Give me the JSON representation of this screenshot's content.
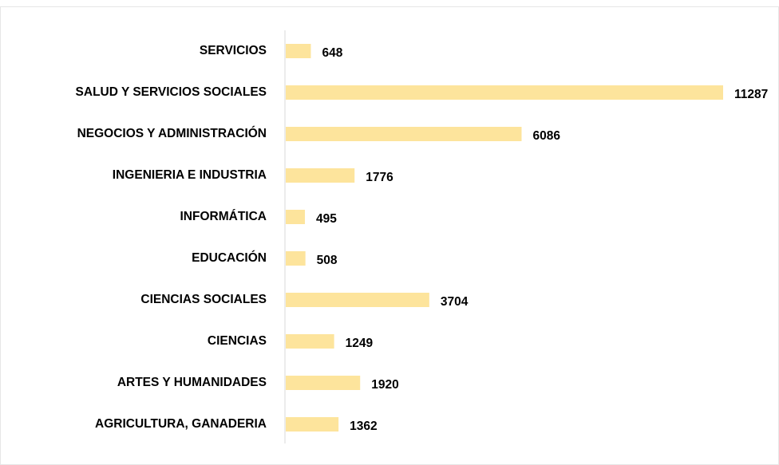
{
  "chart_data": {
    "type": "hbar",
    "categories": [
      "SERVICIOS",
      "SALUD Y SERVICIOS SOCIALES",
      "NEGOCIOS Y ADMINISTRACIÓN",
      "INGENIERIA E INDUSTRIA",
      "INFORMÁTICA",
      "EDUCACIÓN",
      "CIENCIAS SOCIALES",
      "CIENCIAS",
      "ARTES Y HUMANIDADES",
      "AGRICULTURA, GANADERIA"
    ],
    "values": [
      648,
      11287,
      6086,
      1776,
      495,
      508,
      3704,
      1249,
      1920,
      1362
    ],
    "color": "#fde49c"
  }
}
